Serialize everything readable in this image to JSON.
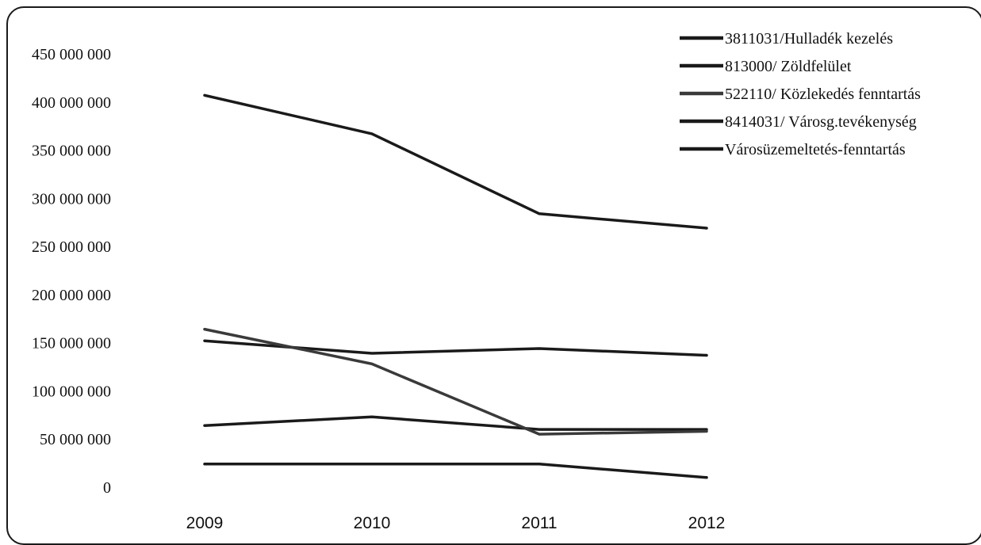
{
  "chart_data": {
    "type": "line",
    "title": "",
    "xlabel": "",
    "ylabel": "",
    "categories": [
      "2009",
      "2010",
      "2011",
      "2012"
    ],
    "ylim": [
      0,
      450000000
    ],
    "yticks": [
      0,
      50000000,
      100000000,
      150000000,
      200000000,
      250000000,
      300000000,
      350000000,
      400000000,
      450000000
    ],
    "ytick_labels": [
      "0",
      "50 000 000",
      "100 000 000",
      "150 000 000",
      "200 000 000",
      "250 000 000",
      "300 000 000",
      "350 000 000",
      "400 000 000",
      "450 000 000"
    ],
    "grid": false,
    "legend_position": "top-right",
    "series": [
      {
        "name": "3811031/Hulladék kezelés",
        "color": "#1a1a1a",
        "values": [
          152000000,
          139000000,
          144000000,
          137000000
        ]
      },
      {
        "name": "813000/ Zöldfelület",
        "color": "#1a1a1a",
        "values": [
          64000000,
          73000000,
          60000000,
          60000000
        ]
      },
      {
        "name": "522110/ Közlekedés fenntartás",
        "color": "#3a3a3a",
        "values": [
          164000000,
          128000000,
          55000000,
          58000000
        ]
      },
      {
        "name": "8414031/ Városg.tevékenység",
        "color": "#1a1a1a",
        "values": [
          24000000,
          24000000,
          24000000,
          10000000
        ]
      },
      {
        "name": "Városüzemeltetés-fenntartás",
        "color": "#1a1a1a",
        "values": [
          407000000,
          367000000,
          284000000,
          269000000
        ]
      }
    ]
  }
}
